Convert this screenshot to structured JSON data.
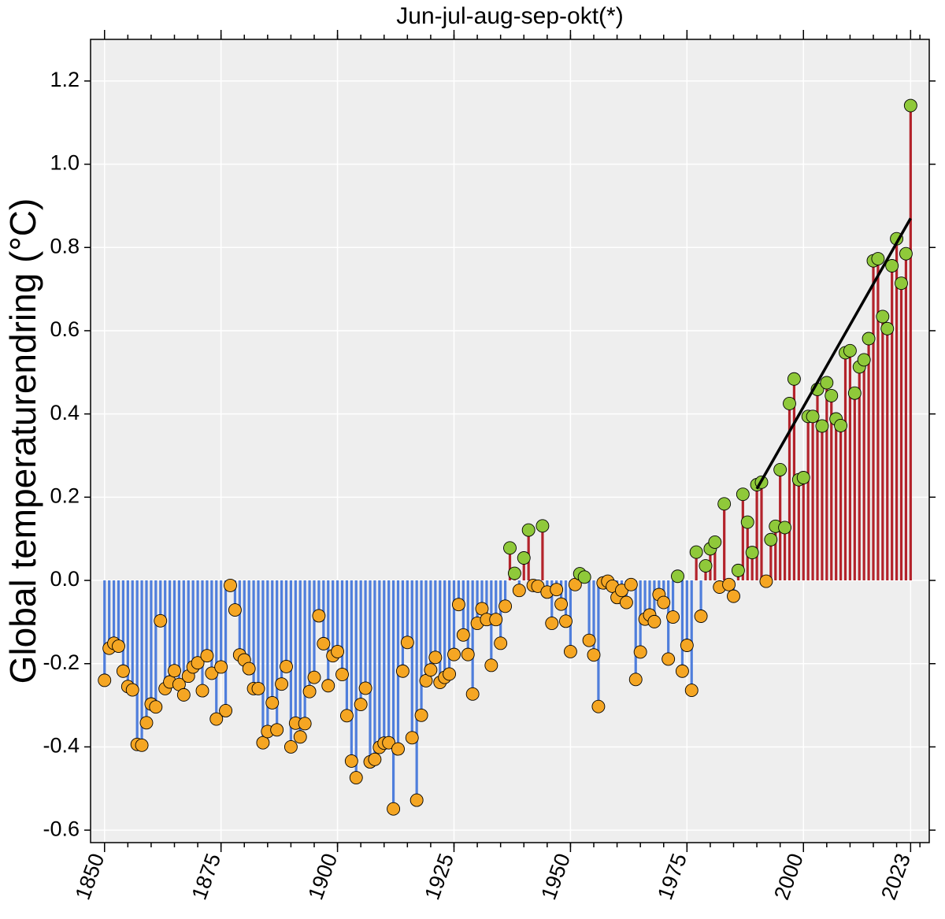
{
  "chart": {
    "type": "stem",
    "title": "Jun-jul-aug-sep-okt(*)",
    "ylabel": "Global temperaturendring (°C)",
    "title_fontsize": 30,
    "ylabel_fontsize": 46,
    "tick_fontsize": 27,
    "plot_bg": "#eeeeee",
    "grid_color": "#ffffff",
    "axis_color": "#000000",
    "stem_width": 3.2,
    "marker_radius": 8,
    "marker_stroke": "#000000",
    "marker_stroke_width": 0.9,
    "colors": {
      "neg_stem": "#4f7edc",
      "neg_marker": "#f5a623",
      "pos_stem": "#b3232b",
      "pos_marker": "#8fc93a"
    },
    "xlim": [
      1847,
      2027
    ],
    "ylim": [
      -0.63,
      1.3
    ],
    "xticks": [
      1850,
      1875,
      1900,
      1925,
      1950,
      1975,
      2000,
      2023
    ],
    "yticks": [
      -0.6,
      -0.4,
      -0.2,
      0.0,
      0.2,
      0.4,
      0.6,
      0.8,
      1.0,
      1.2
    ],
    "minor_xticks_every": 5,
    "start_year": 1850,
    "values": [
      -0.24,
      -0.163,
      -0.151,
      -0.158,
      -0.218,
      -0.255,
      -0.263,
      -0.394,
      -0.396,
      -0.342,
      -0.297,
      -0.304,
      -0.097,
      -0.26,
      -0.244,
      -0.217,
      -0.25,
      -0.275,
      -0.23,
      -0.208,
      -0.198,
      -0.265,
      -0.181,
      -0.223,
      -0.333,
      -0.208,
      -0.313,
      -0.012,
      -0.071,
      -0.179,
      -0.191,
      -0.212,
      -0.26,
      -0.26,
      -0.39,
      -0.363,
      -0.294,
      -0.359,
      -0.249,
      -0.207,
      -0.4,
      -0.343,
      -0.376,
      -0.344,
      -0.267,
      -0.233,
      -0.085,
      -0.152,
      -0.253,
      -0.181,
      -0.171,
      -0.226,
      -0.325,
      -0.434,
      -0.474,
      -0.298,
      -0.259,
      -0.436,
      -0.43,
      -0.401,
      -0.391,
      -0.39,
      -0.549,
      -0.405,
      -0.218,
      -0.149,
      -0.378,
      -0.528,
      -0.324,
      -0.241,
      -0.215,
      -0.185,
      -0.245,
      -0.233,
      -0.225,
      -0.178,
      -0.058,
      -0.131,
      -0.178,
      -0.273,
      -0.103,
      -0.068,
      -0.094,
      -0.204,
      -0.094,
      -0.151,
      -0.062,
      0.078,
      0.017,
      -0.024,
      0.054,
      0.121,
      -0.012,
      -0.014,
      0.131,
      -0.028,
      -0.103,
      -0.022,
      -0.057,
      -0.098,
      -0.171,
      -0.01,
      0.016,
      0.008,
      -0.144,
      -0.179,
      -0.303,
      -0.006,
      -0.002,
      -0.014,
      -0.041,
      -0.024,
      -0.053,
      -0.01,
      -0.238,
      -0.172,
      -0.093,
      -0.083,
      -0.099,
      -0.034,
      -0.053,
      -0.189,
      -0.088,
      0.01,
      -0.218,
      -0.156,
      -0.264,
      0.068,
      -0.086,
      0.035,
      0.076,
      0.092,
      -0.016,
      0.184,
      -0.01,
      -0.038,
      0.024,
      0.207,
      0.14,
      0.067,
      0.23,
      0.236,
      -0.002,
      0.098,
      0.13,
      0.266,
      0.127,
      0.425,
      0.484,
      0.242,
      0.247,
      0.394,
      0.394,
      0.459,
      0.371,
      0.475,
      0.444,
      0.388,
      0.372,
      0.547,
      0.552,
      0.45,
      0.513,
      0.53,
      0.581,
      0.768,
      0.773,
      0.634,
      0.605,
      0.756,
      0.821,
      0.714,
      0.785,
      1.141
    ],
    "trend_line": {
      "x1": 1990,
      "y1": 0.22,
      "x2": 2023,
      "y2": 0.87,
      "color": "#000000",
      "width": 3.5
    }
  }
}
